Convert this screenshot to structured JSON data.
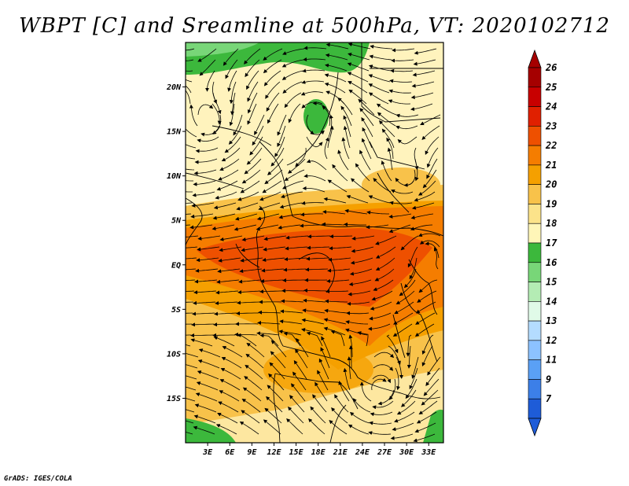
{
  "title": "WBPT [C] and Sreamline at 500hPa, VT: 2020102712",
  "credit": "GrADS: IGES/COLA",
  "map": {
    "lon_range": [
      0,
      35
    ],
    "lat_range": [
      -20,
      25
    ],
    "lat_ticks": [
      {
        "value": 20,
        "label": "20N"
      },
      {
        "value": 15,
        "label": "15N"
      },
      {
        "value": 10,
        "label": "10N"
      },
      {
        "value": 5,
        "label": "5N"
      },
      {
        "value": 0,
        "label": "EQ"
      },
      {
        "value": -5,
        "label": "5S"
      },
      {
        "value": -10,
        "label": "10S"
      },
      {
        "value": -15,
        "label": "15S"
      }
    ],
    "lon_ticks": [
      {
        "value": 3,
        "label": "3E"
      },
      {
        "value": 6,
        "label": "6E"
      },
      {
        "value": 9,
        "label": "9E"
      },
      {
        "value": 12,
        "label": "12E"
      },
      {
        "value": 15,
        "label": "15E"
      },
      {
        "value": 18,
        "label": "18E"
      },
      {
        "value": 21,
        "label": "21E"
      },
      {
        "value": 24,
        "label": "24E"
      },
      {
        "value": 27,
        "label": "27E"
      },
      {
        "value": 30,
        "label": "30E"
      },
      {
        "value": 33,
        "label": "33E"
      }
    ]
  },
  "colorbar": {
    "levels": [
      {
        "label": "26",
        "color": "#a50000"
      },
      {
        "label": "25",
        "color": "#c80000"
      },
      {
        "label": "24",
        "color": "#e02000"
      },
      {
        "label": "23",
        "color": "#ee5000"
      },
      {
        "label": "22",
        "color": "#f57d00"
      },
      {
        "label": "21",
        "color": "#f5a000"
      },
      {
        "label": "20",
        "color": "#f8c24a"
      },
      {
        "label": "19",
        "color": "#fce38a"
      },
      {
        "label": "18",
        "color": "#fff6b8"
      },
      {
        "label": "17",
        "color": "#3cb83c"
      },
      {
        "label": "16",
        "color": "#78d678"
      },
      {
        "label": "15",
        "color": "#b4ecb4"
      },
      {
        "label": "14",
        "color": "#e0fae8"
      },
      {
        "label": "13",
        "color": "#b4dcff"
      },
      {
        "label": "12",
        "color": "#8cc2ff"
      },
      {
        "label": "11",
        "color": "#5aa0f5"
      },
      {
        "label": "9",
        "color": "#3c7fe8"
      },
      {
        "label": "7",
        "color": "#1e5cd8"
      }
    ],
    "top_color": "#a50000",
    "bottom_color": "#1e5cd8"
  }
}
